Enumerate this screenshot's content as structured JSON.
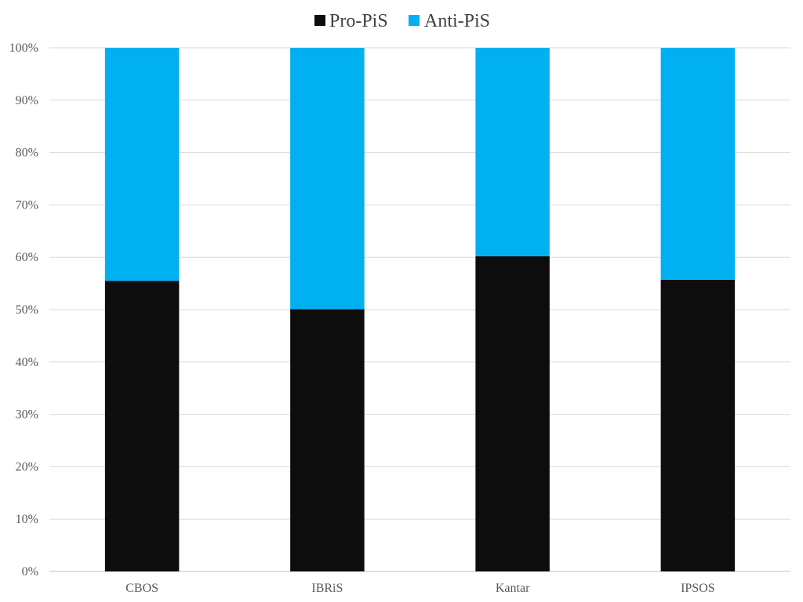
{
  "chart_data": {
    "type": "bar",
    "stacked": true,
    "percent_stacked": true,
    "categories": [
      "CBOS",
      "IBRiS",
      "Kantar",
      "IPSOS"
    ],
    "series": [
      {
        "name": "Pro-PiS",
        "values": [
          55.5,
          50.1,
          60.2,
          55.7
        ],
        "color": "#0d0d0d"
      },
      {
        "name": "Anti-PiS",
        "values": [
          44.5,
          49.9,
          39.8,
          44.3
        ],
        "color": "#00b0f0"
      }
    ],
    "y_ticks": [
      "0%",
      "10%",
      "20%",
      "30%",
      "40%",
      "50%",
      "60%",
      "70%",
      "80%",
      "90%",
      "100%"
    ],
    "ylim": [
      0,
      100
    ],
    "grid": true,
    "legend": "top-center",
    "title": "",
    "xlabel": "",
    "ylabel": ""
  }
}
